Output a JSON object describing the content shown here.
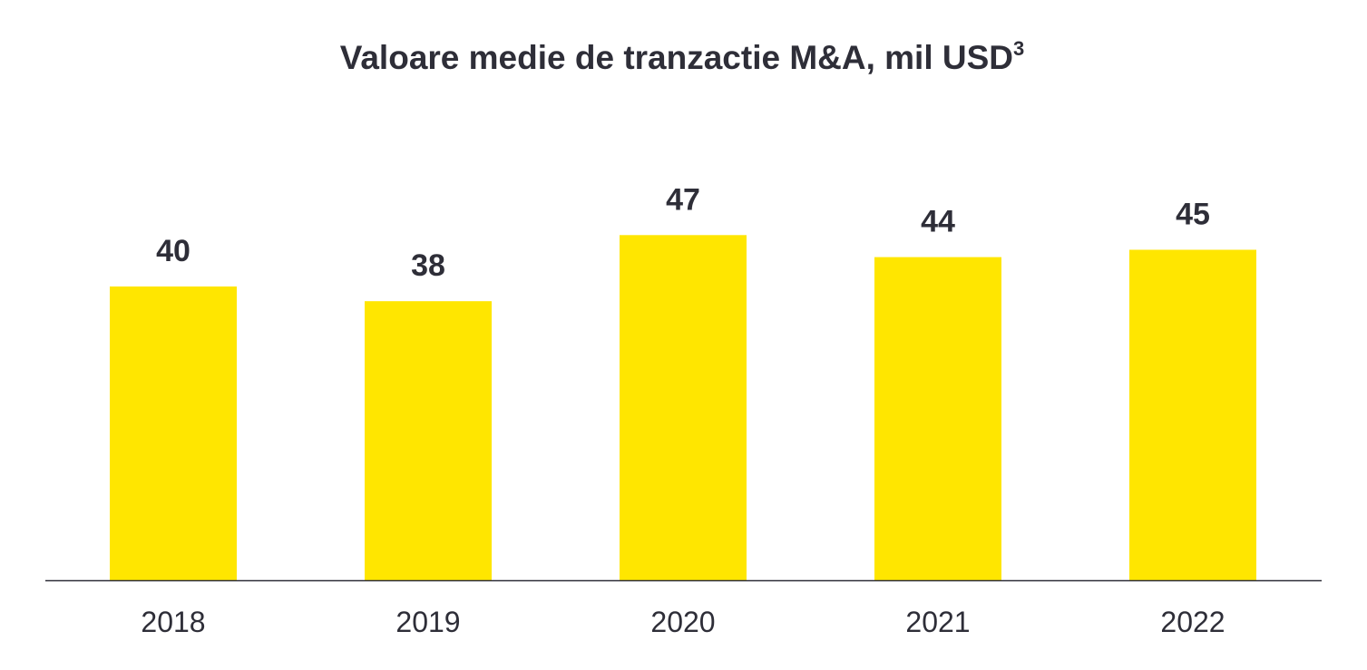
{
  "chart_data": {
    "type": "bar",
    "title": "Valoare medie de tranzactie M&A, mil USD",
    "title_superscript": "3",
    "categories": [
      "2018",
      "2019",
      "2020",
      "2021",
      "2022"
    ],
    "values": [
      40,
      38,
      47,
      44,
      45
    ],
    "data_labels": [
      "40",
      "38",
      "47",
      "44",
      "45"
    ],
    "xlabel": "",
    "ylabel": "",
    "ylim": [
      0,
      50
    ],
    "grid": false,
    "legend": "none",
    "colors": {
      "bar": "#FFE600",
      "text": "#2E2E38",
      "axis": "#2E2E38"
    }
  }
}
